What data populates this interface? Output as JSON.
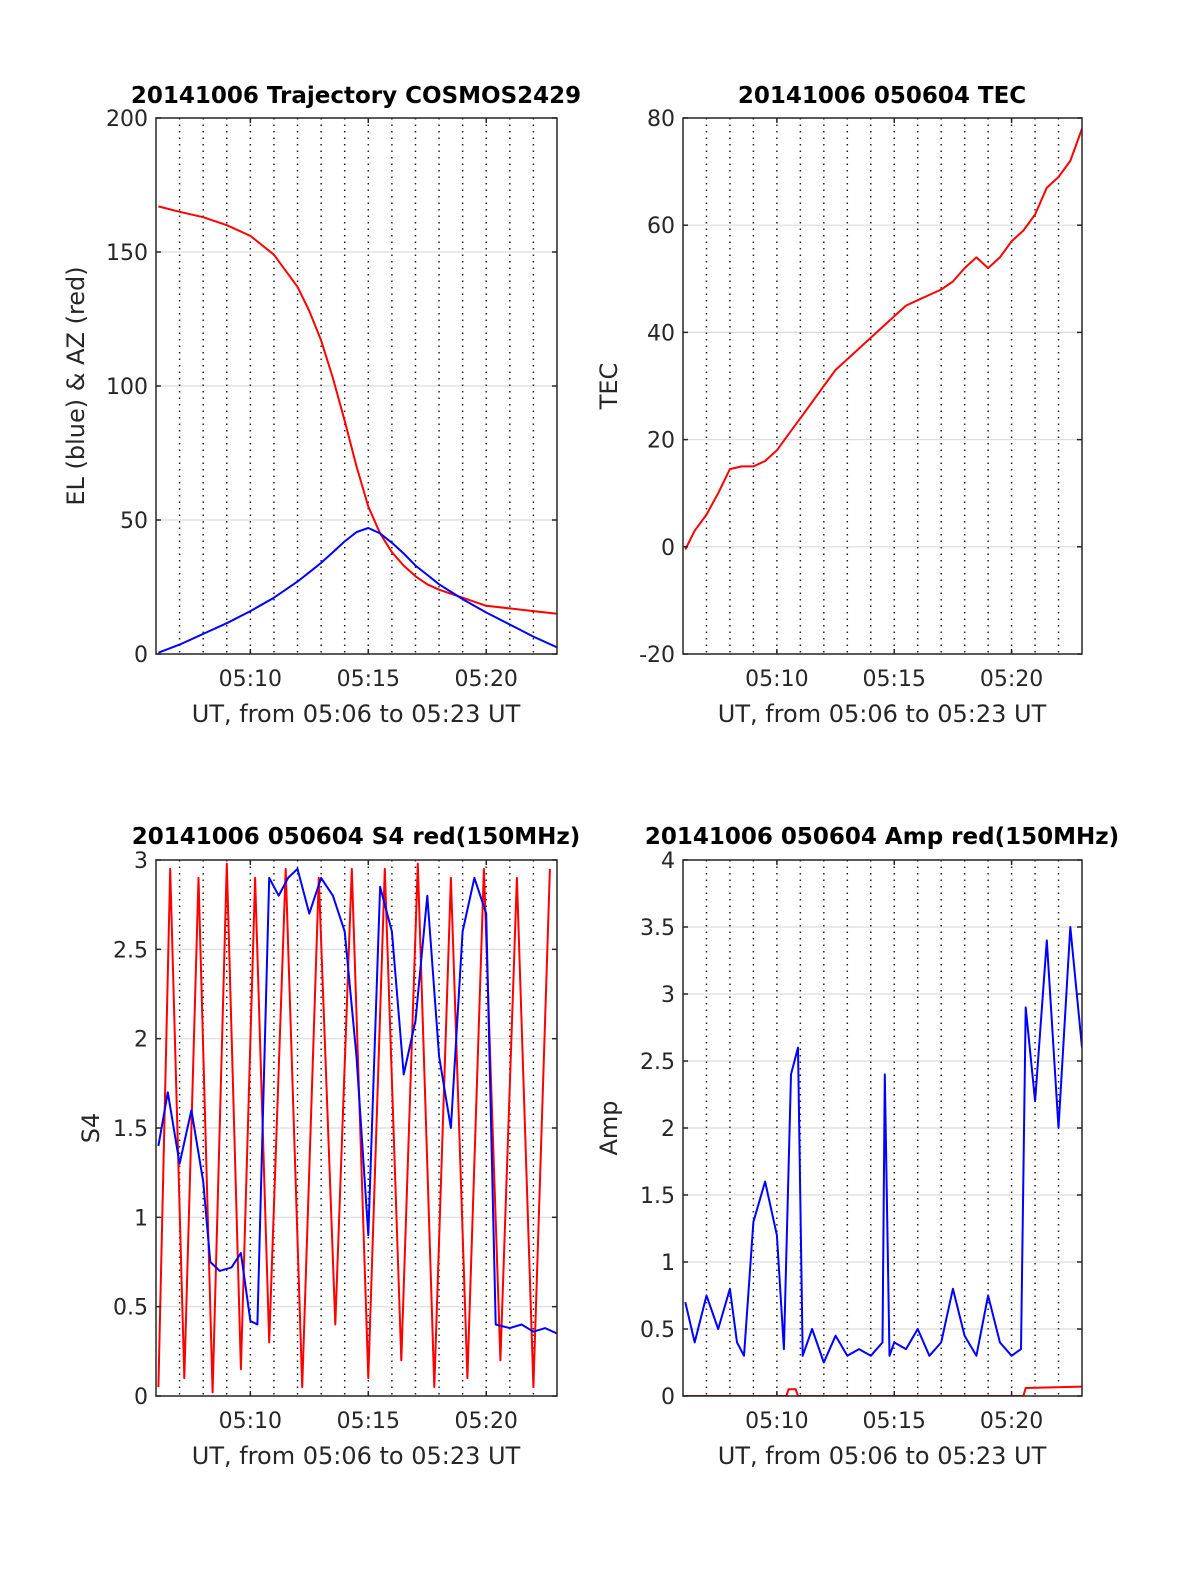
{
  "chart_data": [
    {
      "type": "line",
      "title": "20141006 Trajectory COSMOS2429",
      "xlabel": "UT, from 05:06 to 05:23 UT",
      "ylabel": "EL (blue) & AZ (red)",
      "xlim": [
        6,
        23
      ],
      "ylim": [
        0,
        200
      ],
      "xticks": [
        10,
        15,
        20
      ],
      "xtick_labels": [
        "05:10",
        "05:15",
        "05:20"
      ],
      "yticks": [
        0,
        50,
        100,
        150,
        200
      ],
      "ytick_labels": [
        "0",
        "50",
        "100",
        "150",
        "200"
      ],
      "grid": "horizontal solid at y-ticks, vertical dotted every minute",
      "series": [
        {
          "color": "#ff0000",
          "x": [
            6.1,
            7,
            8,
            9,
            10,
            11,
            12,
            12.5,
            13,
            13.5,
            14,
            14.5,
            15,
            15.5,
            16,
            16.5,
            17,
            17.5,
            18,
            19,
            20,
            21,
            22,
            23
          ],
          "values": [
            167,
            165,
            163,
            160,
            156,
            149,
            137,
            128,
            117,
            103,
            87,
            70,
            55,
            45,
            38,
            33,
            29,
            26,
            24,
            21,
            18,
            17,
            16,
            15
          ]
        },
        {
          "color": "#0000ff",
          "x": [
            6.1,
            7,
            8,
            9,
            10,
            11,
            12,
            12.5,
            13,
            13.5,
            14,
            14.5,
            15,
            15.5,
            16,
            16.5,
            17,
            17.5,
            18,
            19,
            20,
            21,
            22,
            23
          ],
          "values": [
            0.5,
            3.5,
            7.5,
            11.5,
            16,
            21,
            27,
            30.5,
            34,
            38,
            42,
            45.5,
            47,
            45,
            41.5,
            37.5,
            33,
            29.5,
            26,
            20.5,
            15.5,
            11,
            6.5,
            2.5
          ]
        }
      ]
    },
    {
      "type": "line",
      "title": "20141006 050604 TEC",
      "xlabel": "UT, from 05:06 to 05:23 UT",
      "ylabel": "TEC",
      "xlim": [
        6,
        23
      ],
      "ylim": [
        -20,
        80
      ],
      "xticks": [
        10,
        15,
        20
      ],
      "xtick_labels": [
        "05:10",
        "05:15",
        "05:20"
      ],
      "yticks": [
        -20,
        0,
        20,
        40,
        60,
        80
      ],
      "ytick_labels": [
        "-20",
        "0",
        "20",
        "40",
        "60",
        "80"
      ],
      "grid": "horizontal solid at y-ticks, vertical dotted every minute",
      "series": [
        {
          "color": "#ff0000",
          "x": [
            6.1,
            6.5,
            7,
            7.5,
            8,
            8.5,
            9,
            9.5,
            10,
            10.5,
            11,
            11.5,
            12,
            12.5,
            13,
            13.5,
            14,
            14.5,
            15,
            15.5,
            16,
            16.5,
            17,
            17.5,
            18,
            18.5,
            19,
            19.5,
            20,
            20.5,
            21,
            21.5,
            22,
            22.5,
            23
          ],
          "values": [
            -0.5,
            3,
            6,
            10,
            14.5,
            15,
            15,
            16,
            18,
            21,
            24,
            27,
            30,
            33,
            35,
            37,
            39,
            41,
            43,
            45,
            46,
            47,
            48,
            49.5,
            52,
            54,
            52,
            54,
            57,
            59,
            62,
            67,
            69,
            72,
            78
          ]
        }
      ]
    },
    {
      "type": "line",
      "title": "20141006 050604 S4 red(150MHz)",
      "xlabel": "UT, from 05:06 to 05:23 UT",
      "ylabel": "S4",
      "xlim": [
        6,
        23
      ],
      "ylim": [
        0,
        3
      ],
      "xticks": [
        10,
        15,
        20
      ],
      "xtick_labels": [
        "05:10",
        "05:15",
        "05:20"
      ],
      "yticks": [
        0,
        0.5,
        1,
        1.5,
        2,
        2.5,
        3
      ],
      "ytick_labels": [
        "0",
        "0.5",
        "1",
        "1.5",
        "2",
        "2.5",
        "3"
      ],
      "grid": "horizontal solid at y-ticks, vertical dotted every minute",
      "series": [
        {
          "color": "#ff0000",
          "x": [
            6.1,
            6.6,
            7.2,
            7.8,
            8.4,
            9.0,
            9.6,
            10.2,
            10.8,
            11.5,
            12.2,
            12.9,
            13.6,
            14.3,
            15.0,
            15.7,
            16.4,
            17.1,
            17.8,
            18.5,
            19.2,
            19.9,
            20.6,
            21.3,
            22.0,
            22.7
          ],
          "values": [
            0.05,
            2.95,
            0.1,
            2.9,
            0.02,
            2.98,
            0.15,
            2.9,
            0.3,
            2.95,
            0.05,
            2.9,
            0.4,
            2.95,
            0.1,
            2.95,
            0.2,
            2.98,
            0.05,
            2.9,
            0.1,
            2.95,
            0.2,
            2.9,
            0.05,
            2.95
          ]
        },
        {
          "color": "#0000ff",
          "x": [
            6.1,
            6.5,
            7.0,
            7.5,
            8.0,
            8.3,
            8.7,
            9.2,
            9.6,
            10.0,
            10.3,
            10.8,
            11.2,
            11.6,
            12.0,
            12.5,
            13.0,
            13.5,
            14.0,
            14.5,
            15.0,
            15.5,
            16.0,
            16.5,
            17.0,
            17.5,
            18.0,
            18.5,
            19.0,
            19.5,
            20.0,
            20.4,
            21.0,
            21.5,
            22.0,
            22.5,
            23.0
          ],
          "values": [
            1.4,
            1.7,
            1.3,
            1.6,
            1.2,
            0.75,
            0.7,
            0.72,
            0.8,
            0.42,
            0.4,
            2.9,
            2.8,
            2.9,
            2.95,
            2.7,
            2.9,
            2.8,
            2.6,
            1.9,
            0.9,
            2.85,
            2.6,
            1.8,
            2.1,
            2.8,
            1.9,
            1.5,
            2.6,
            2.9,
            2.7,
            0.4,
            0.38,
            0.4,
            0.36,
            0.38,
            0.35
          ]
        }
      ]
    },
    {
      "type": "line",
      "title": "20141006 050604 Amp red(150MHz)",
      "xlabel": "UT, from 05:06 to 05:23 UT",
      "ylabel": "Amp",
      "xlim": [
        6,
        23
      ],
      "ylim": [
        0,
        4
      ],
      "xticks": [
        10,
        15,
        20
      ],
      "xtick_labels": [
        "05:10",
        "05:15",
        "05:20"
      ],
      "yticks": [
        0,
        0.5,
        1,
        1.5,
        2,
        2.5,
        3,
        3.5,
        4
      ],
      "ytick_labels": [
        "0",
        "0.5",
        "1",
        "1.5",
        "2",
        "2.5",
        "3",
        "3.5",
        "4"
      ],
      "grid": "horizontal solid at y-ticks, vertical dotted every minute",
      "series": [
        {
          "color": "#ff0000",
          "x": [
            6.1,
            10.4,
            10.5,
            10.8,
            10.9,
            20.5,
            20.6,
            23.0
          ],
          "values": [
            0,
            0,
            0.05,
            0.05,
            0,
            0,
            0.06,
            0.07
          ]
        },
        {
          "color": "#0000ff",
          "x": [
            6.1,
            6.5,
            7.0,
            7.5,
            8.0,
            8.3,
            8.6,
            9.0,
            9.5,
            10.0,
            10.3,
            10.6,
            10.9,
            11.1,
            11.5,
            12.0,
            12.5,
            13.0,
            13.5,
            14.0,
            14.5,
            14.6,
            14.8,
            15.0,
            15.5,
            16.0,
            16.5,
            17.0,
            17.5,
            18.0,
            18.5,
            19.0,
            19.5,
            20.0,
            20.4,
            20.6,
            21.0,
            21.5,
            22.0,
            22.5,
            23.0
          ],
          "values": [
            0.7,
            0.4,
            0.75,
            0.5,
            0.8,
            0.4,
            0.3,
            1.3,
            1.6,
            1.2,
            0.35,
            2.4,
            2.6,
            0.3,
            0.5,
            0.25,
            0.45,
            0.3,
            0.35,
            0.3,
            0.4,
            2.4,
            0.3,
            0.4,
            0.35,
            0.5,
            0.3,
            0.4,
            0.8,
            0.45,
            0.3,
            0.75,
            0.4,
            0.3,
            0.35,
            2.9,
            2.2,
            3.4,
            2.0,
            3.5,
            2.6
          ]
        }
      ]
    }
  ]
}
